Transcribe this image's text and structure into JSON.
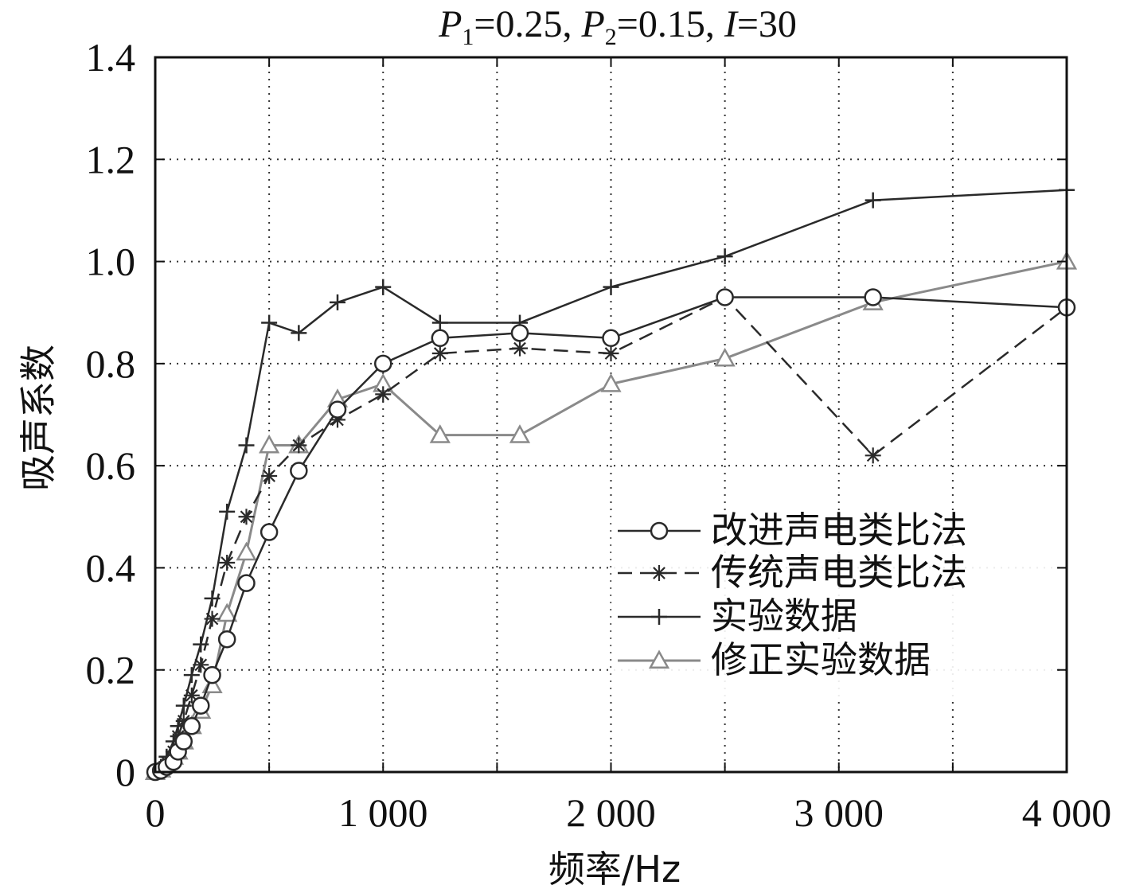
{
  "chart_data": {
    "type": "line",
    "title": "P1=0.25, P2=0.15, I=30",
    "title_parts": {
      "p1_var": "P",
      "p1_sub": "1",
      "p1_val": "=0.25, ",
      "p2_var": "P",
      "p2_sub": "2",
      "p2_val": "=0.15, ",
      "i_var": "I",
      "i_val": "=30"
    },
    "xlabel": "频率/Hz",
    "ylabel": "吸声系数",
    "xlim": [
      0,
      4000
    ],
    "ylim": [
      0,
      1.4
    ],
    "x_ticks": [
      0,
      1000,
      2000,
      3000,
      4000
    ],
    "x_tick_labels": [
      "0",
      "1 000",
      "2 000",
      "3 000",
      "4 000"
    ],
    "y_ticks": [
      0,
      0.2,
      0.4,
      0.6,
      0.8,
      1.0,
      1.2,
      1.4
    ],
    "y_tick_labels": [
      "0",
      "0.2",
      "0.4",
      "0.6",
      "0.8",
      "1.0",
      "1.2",
      "1.4"
    ],
    "grid": true,
    "legend_position": "lower-right",
    "series": [
      {
        "name": "改进声电类比法",
        "marker": "circle",
        "line": "solid",
        "color": "#2a2a2a",
        "x": [
          0,
          25,
          50,
          80,
          100,
          125,
          160,
          200,
          250,
          315,
          400,
          500,
          630,
          800,
          1000,
          1250,
          1600,
          2000,
          2500,
          3150,
          4000
        ],
        "y": [
          0,
          0.003,
          0.01,
          0.02,
          0.04,
          0.06,
          0.09,
          0.13,
          0.19,
          0.26,
          0.37,
          0.47,
          0.59,
          0.71,
          0.8,
          0.85,
          0.86,
          0.85,
          0.93,
          0.93,
          0.91
        ]
      },
      {
        "name": "传统声电类比法",
        "marker": "asterisk",
        "line": "dashed",
        "color": "#2a2a2a",
        "x": [
          0,
          25,
          50,
          80,
          100,
          125,
          160,
          200,
          250,
          315,
          400,
          500,
          630,
          800,
          1000,
          1250,
          1600,
          2000,
          2500,
          3150,
          4000
        ],
        "y": [
          0,
          0.005,
          0.02,
          0.04,
          0.07,
          0.1,
          0.15,
          0.21,
          0.3,
          0.41,
          0.5,
          0.58,
          0.64,
          0.69,
          0.74,
          0.82,
          0.83,
          0.82,
          0.93,
          0.62,
          0.91
        ]
      },
      {
        "name": "实验数据",
        "marker": "plus",
        "line": "solid",
        "color": "#2a2a2a",
        "x": [
          0,
          25,
          50,
          80,
          100,
          125,
          160,
          200,
          250,
          315,
          400,
          500,
          630,
          800,
          1000,
          1250,
          1600,
          2000,
          2500,
          3150,
          4000
        ],
        "y": [
          0,
          0.01,
          0.03,
          0.06,
          0.09,
          0.13,
          0.19,
          0.25,
          0.34,
          0.51,
          0.64,
          0.88,
          0.86,
          0.92,
          0.95,
          0.88,
          0.88,
          0.95,
          1.01,
          1.12,
          1.14
        ]
      },
      {
        "name": "修正实验数据",
        "marker": "triangle",
        "line": "solid",
        "color": "#8a8a8a",
        "x": [
          0,
          25,
          50,
          80,
          100,
          125,
          160,
          200,
          250,
          315,
          400,
          500,
          630,
          800,
          1000,
          1250,
          1600,
          2000,
          2500,
          3150,
          4000
        ],
        "y": [
          0,
          0.005,
          0.015,
          0.03,
          0.04,
          0.06,
          0.09,
          0.12,
          0.17,
          0.31,
          0.43,
          0.64,
          0.64,
          0.73,
          0.76,
          0.66,
          0.66,
          0.76,
          0.81,
          0.92,
          1.0
        ]
      }
    ]
  }
}
